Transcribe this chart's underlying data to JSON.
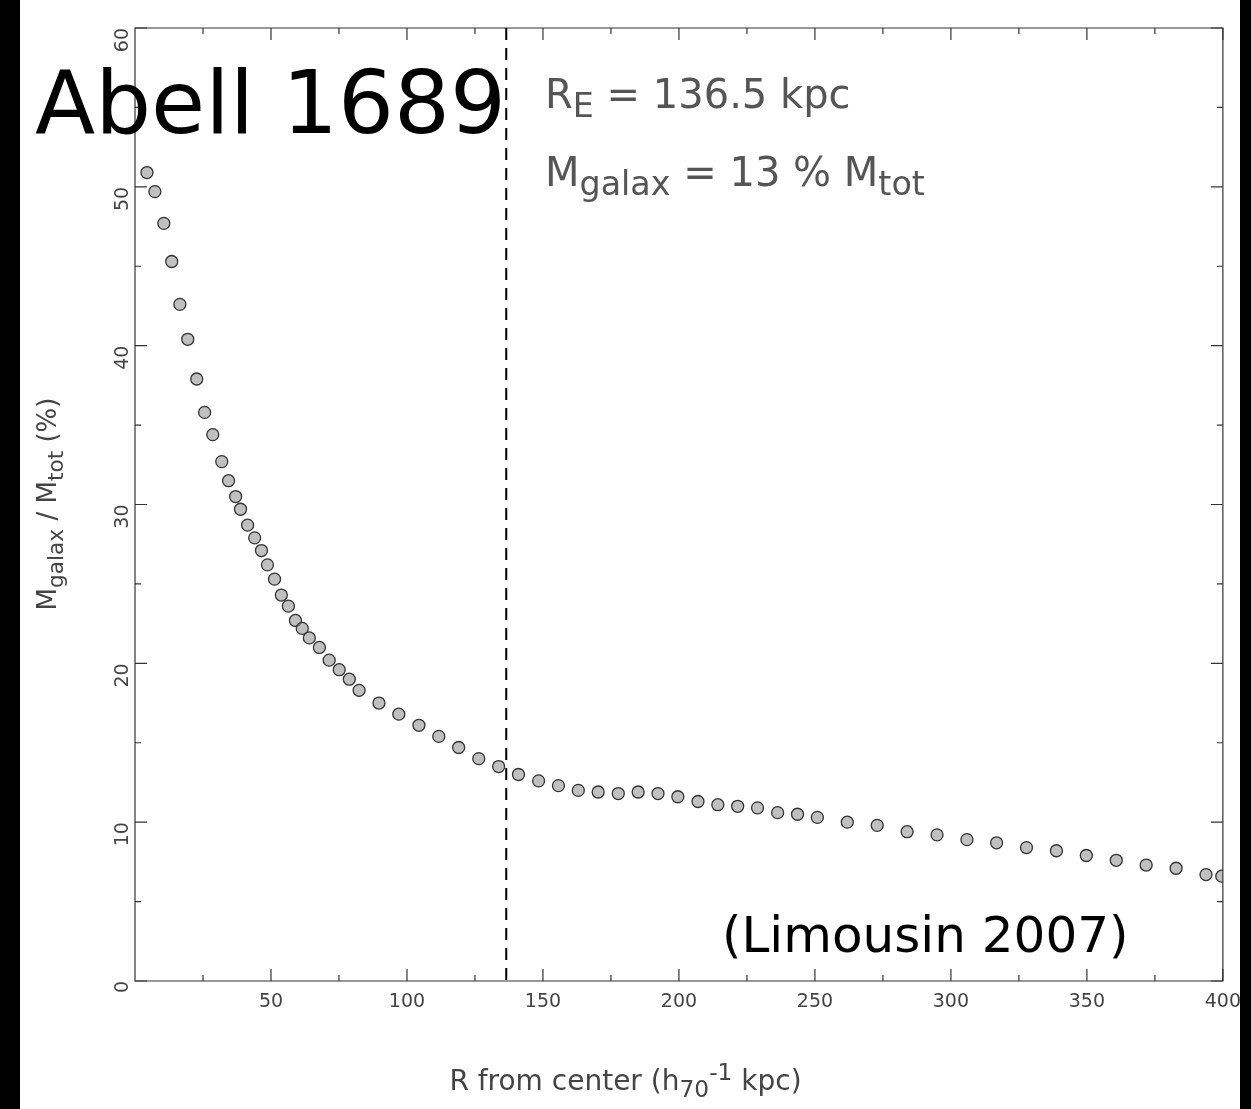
{
  "chart_data": {
    "type": "scatter",
    "title": "Abell 1689",
    "xlabel": "R from center (h$_{70}$$^{-1}$ kpc)",
    "ylabel": "M$_{galax}$ / M$_{tot}$ (%)",
    "annotations": [
      "R$_{E}$ = 136.5 kpc",
      "M$_{galax}$ = 13 % M$_{tot}$",
      "(Limousin 2007)"
    ],
    "x": [
      4.4,
      7.3,
      10.6,
      13.5,
      16.5,
      19.4,
      22.7,
      25.6,
      28.6,
      31.9,
      34.4,
      37,
      38.8,
      41.4,
      44,
      46.5,
      48.7,
      51.3,
      53.8,
      56.4,
      59,
      61.5,
      64.1,
      67.8,
      71.4,
      75.1,
      78.8,
      82.4,
      89.7,
      97,
      104.4,
      111.7,
      119,
      126.4,
      133.7,
      141,
      148.4,
      155.7,
      163,
      170.3,
      177.7,
      185,
      192.3,
      199.6,
      207,
      214.3,
      221.6,
      228.9,
      236.3,
      243.6,
      250.9,
      261.9,
      272.9,
      283.9,
      294.9,
      305.9,
      316.8,
      327.8,
      338.8,
      349.8,
      360.8,
      371.8,
      382.8,
      393.8,
      399.6
    ],
    "series": [
      {
        "color": "#333333",
        "values": [
          50.9,
          49.7,
          47.7,
          45.3,
          42.6,
          40.4,
          37.9,
          35.8,
          34.4,
          32.7,
          31.5,
          30.5,
          29.7,
          28.7,
          27.9,
          27.1,
          26.2,
          25.3,
          24.3,
          23.6,
          22.7,
          22.2,
          21.6,
          21.0,
          20.2,
          19.6,
          19.0,
          18.3,
          17.5,
          16.8,
          16.1,
          15.4,
          14.7,
          14.0,
          13.5,
          13.0,
          12.6,
          12.3,
          12.0,
          11.9,
          11.8,
          11.9,
          11.8,
          11.6,
          11.3,
          11.1,
          11.0,
          10.9,
          10.6,
          10.5,
          10.3,
          10.0,
          9.8,
          9.4,
          9.2,
          8.9,
          8.7,
          8.4,
          8.2,
          7.9,
          7.6,
          7.3,
          7.1,
          6.7,
          6.6
        ]
      }
    ],
    "xlim": [
      0,
      400
    ],
    "xticks": [
      50,
      100,
      150,
      200,
      250,
      300,
      350,
      400
    ],
    "ylim": [
      0,
      60
    ],
    "yticks": [
      0,
      10,
      20,
      30,
      40,
      50,
      60
    ],
    "ref_lines": [
      {
        "axis": "x",
        "value": 136.5,
        "color": "#000000",
        "line_style": "dashed"
      }
    ],
    "marker": "circle",
    "grid": false,
    "legend": false
  }
}
